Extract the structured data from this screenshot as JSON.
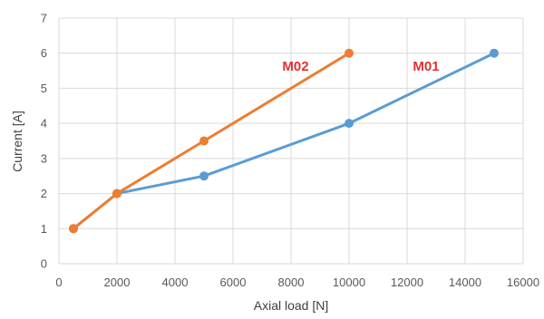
{
  "chart_data": {
    "type": "line",
    "xlabel": "Axial load [N]",
    "ylabel": "Current [A]",
    "xlim": [
      0,
      16000
    ],
    "ylim": [
      0,
      7
    ],
    "x_ticks": [
      0,
      2000,
      4000,
      6000,
      8000,
      10000,
      12000,
      14000,
      16000
    ],
    "y_ticks": [
      0,
      1,
      2,
      3,
      4,
      5,
      6,
      7
    ],
    "grid": true,
    "legend": "none",
    "series": [
      {
        "name": "M01",
        "color": "#5B9BD5",
        "label_color": "#E03030",
        "x": [
          500,
          2000,
          5000,
          10000,
          15000
        ],
        "y": [
          1,
          2,
          2.5,
          4,
          6
        ]
      },
      {
        "name": "M02",
        "color": "#ED7D31",
        "label_color": "#E03030",
        "x": [
          500,
          2000,
          5000,
          10000
        ],
        "y": [
          1,
          2,
          3.5,
          6
        ]
      }
    ]
  }
}
